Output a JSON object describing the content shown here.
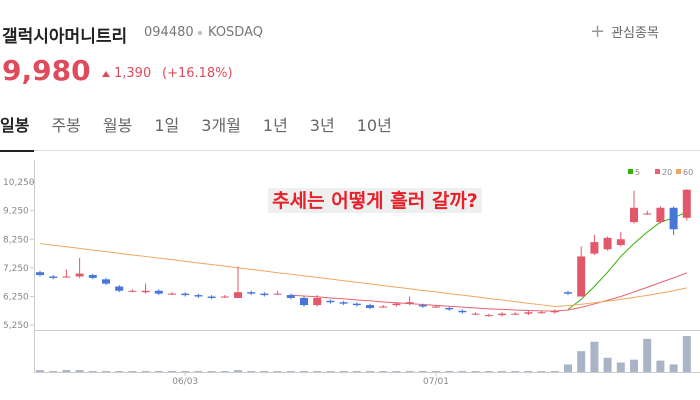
{
  "header": {
    "name": "갤럭시아머니트리",
    "code": "094480",
    "market": "KOSDAQ",
    "watch_button": "관심종목",
    "price": "9,980",
    "change": "1,390",
    "change_pct": "(+16.18%)"
  },
  "tabs": [
    "일봉",
    "주봉",
    "월봉",
    "1일",
    "3개월",
    "1년",
    "3년",
    "10년"
  ],
  "chart_data": {
    "type": "candlestick",
    "annotation": "추세는 어떻게 흘러 갈까?",
    "categories": [
      null,
      null,
      null,
      null,
      null,
      null,
      null,
      null,
      null,
      null,
      null,
      "06/03",
      null,
      null,
      null,
      null,
      null,
      null,
      null,
      null,
      null,
      null,
      null,
      null,
      null,
      null,
      null,
      null,
      null,
      null,
      "07/01",
      null,
      null,
      null,
      null,
      null,
      null,
      null,
      null,
      null,
      null,
      null,
      null,
      null,
      null,
      null,
      null,
      null,
      null,
      null
    ],
    "open": [
      7100,
      6950,
      6950,
      6950,
      7000,
      6850,
      6600,
      6450,
      6400,
      6450,
      6350,
      6350,
      6300,
      6250,
      6250,
      6200,
      6400,
      6350,
      6350,
      6300,
      6200,
      5950,
      6100,
      6050,
      6000,
      5950,
      5900,
      5950,
      6000,
      5950,
      5900,
      5850,
      5750,
      5650,
      5600,
      5600,
      5650,
      5650,
      5700,
      5700,
      6400,
      6250,
      7750,
      7900,
      8050,
      8850,
      9150,
      8850,
      9350,
      9000
    ],
    "high": [
      7150,
      7000,
      7200,
      7600,
      7050,
      6900,
      6650,
      6500,
      6700,
      6500,
      6400,
      6400,
      6350,
      6300,
      6300,
      7300,
      6450,
      6400,
      6450,
      6350,
      6250,
      6300,
      6150,
      6100,
      6050,
      6000,
      5950,
      6050,
      6250,
      6000,
      5950,
      5900,
      5800,
      5700,
      5650,
      5700,
      5700,
      5750,
      5750,
      5800,
      6450,
      8000,
      8400,
      8350,
      8500,
      9950,
      9250,
      9400,
      9400,
      10000
    ],
    "low": [
      6950,
      6850,
      6900,
      6900,
      6850,
      6650,
      6400,
      6400,
      6350,
      6300,
      6300,
      6250,
      6200,
      6150,
      6200,
      6200,
      6300,
      6250,
      6300,
      6150,
      5900,
      5900,
      6000,
      5950,
      5900,
      5800,
      5850,
      5900,
      5950,
      5850,
      5850,
      5750,
      5650,
      5600,
      5550,
      5550,
      5600,
      5600,
      5650,
      5650,
      6300,
      6250,
      7700,
      7850,
      8000,
      8800,
      9100,
      8800,
      8400,
      8900
    ],
    "close": [
      7000,
      6900,
      6950,
      7050,
      6900,
      6700,
      6450,
      6450,
      6450,
      6350,
      6350,
      6300,
      6250,
      6200,
      6250,
      6400,
      6350,
      6300,
      6350,
      6200,
      5950,
      6200,
      6050,
      6000,
      5950,
      5850,
      5900,
      6000,
      6050,
      5900,
      5900,
      5800,
      5700,
      5650,
      5600,
      5650,
      5650,
      5700,
      5700,
      5750,
      6350,
      7650,
      8150,
      8300,
      8250,
      9350,
      9150,
      9350,
      8600,
      9980
    ],
    "volume": [
      2,
      1,
      2,
      2,
      1,
      1,
      1,
      1,
      1,
      1,
      1,
      1,
      1,
      1,
      1,
      2,
      1,
      1,
      1,
      1,
      1,
      1,
      1,
      1,
      1,
      1,
      1,
      1,
      1,
      1,
      1,
      1,
      1,
      1,
      1,
      1,
      1,
      1,
      1,
      1,
      8,
      22,
      32,
      15,
      10,
      13,
      35,
      12,
      8,
      38
    ],
    "up_color": "#e2576a",
    "down_color": "#4677d6",
    "volume_color": "#a9b4c6",
    "series": [
      {
        "name": "5",
        "color": "#2db400",
        "values": [
          null,
          null,
          null,
          null,
          null,
          null,
          null,
          null,
          null,
          null,
          null,
          null,
          null,
          null,
          null,
          null,
          null,
          null,
          null,
          null,
          null,
          null,
          null,
          null,
          null,
          null,
          null,
          null,
          null,
          null,
          null,
          null,
          null,
          null,
          null,
          null,
          null,
          null,
          null,
          null,
          5800,
          6150,
          6600,
          7100,
          7650,
          8100,
          8500,
          8850,
          9000,
          9200
        ]
      },
      {
        "name": "20",
        "color": "#e8636f",
        "values": [
          null,
          null,
          null,
          null,
          null,
          null,
          null,
          null,
          null,
          null,
          null,
          null,
          null,
          null,
          null,
          null,
          null,
          null,
          null,
          6300,
          6270,
          6240,
          6200,
          6170,
          6130,
          6100,
          6060,
          6030,
          6000,
          5970,
          5940,
          5910,
          5880,
          5850,
          5820,
          5800,
          5780,
          5760,
          5750,
          5740,
          5780,
          5870,
          5990,
          6120,
          6250,
          6410,
          6570,
          6740,
          6900,
          7080
        ]
      },
      {
        "name": "60",
        "color": "#f0a860",
        "values": [
          8100,
          8040,
          7990,
          7930,
          7870,
          7820,
          7760,
          7700,
          7650,
          7590,
          7540,
          7480,
          7420,
          7370,
          7310,
          7250,
          7200,
          7140,
          7080,
          7030,
          6970,
          6920,
          6860,
          6800,
          6750,
          6690,
          6630,
          6580,
          6520,
          6460,
          6410,
          6350,
          6300,
          6240,
          6180,
          6130,
          6070,
          6010,
          5960,
          5900,
          5930,
          5980,
          6030,
          6090,
          6150,
          6220,
          6290,
          6370,
          6450,
          6550
        ]
      }
    ],
    "ylim": [
      5080,
      10670
    ],
    "yticks": [
      {
        "value": 5250,
        "label": "5,250"
      },
      {
        "value": 6250,
        "label": "6,250"
      },
      {
        "value": 7250,
        "label": "7,250"
      },
      {
        "value": 8250,
        "label": "8,250"
      },
      {
        "value": 9250,
        "label": "9,250"
      },
      {
        "value": 10250,
        "label": "10,250"
      }
    ]
  }
}
